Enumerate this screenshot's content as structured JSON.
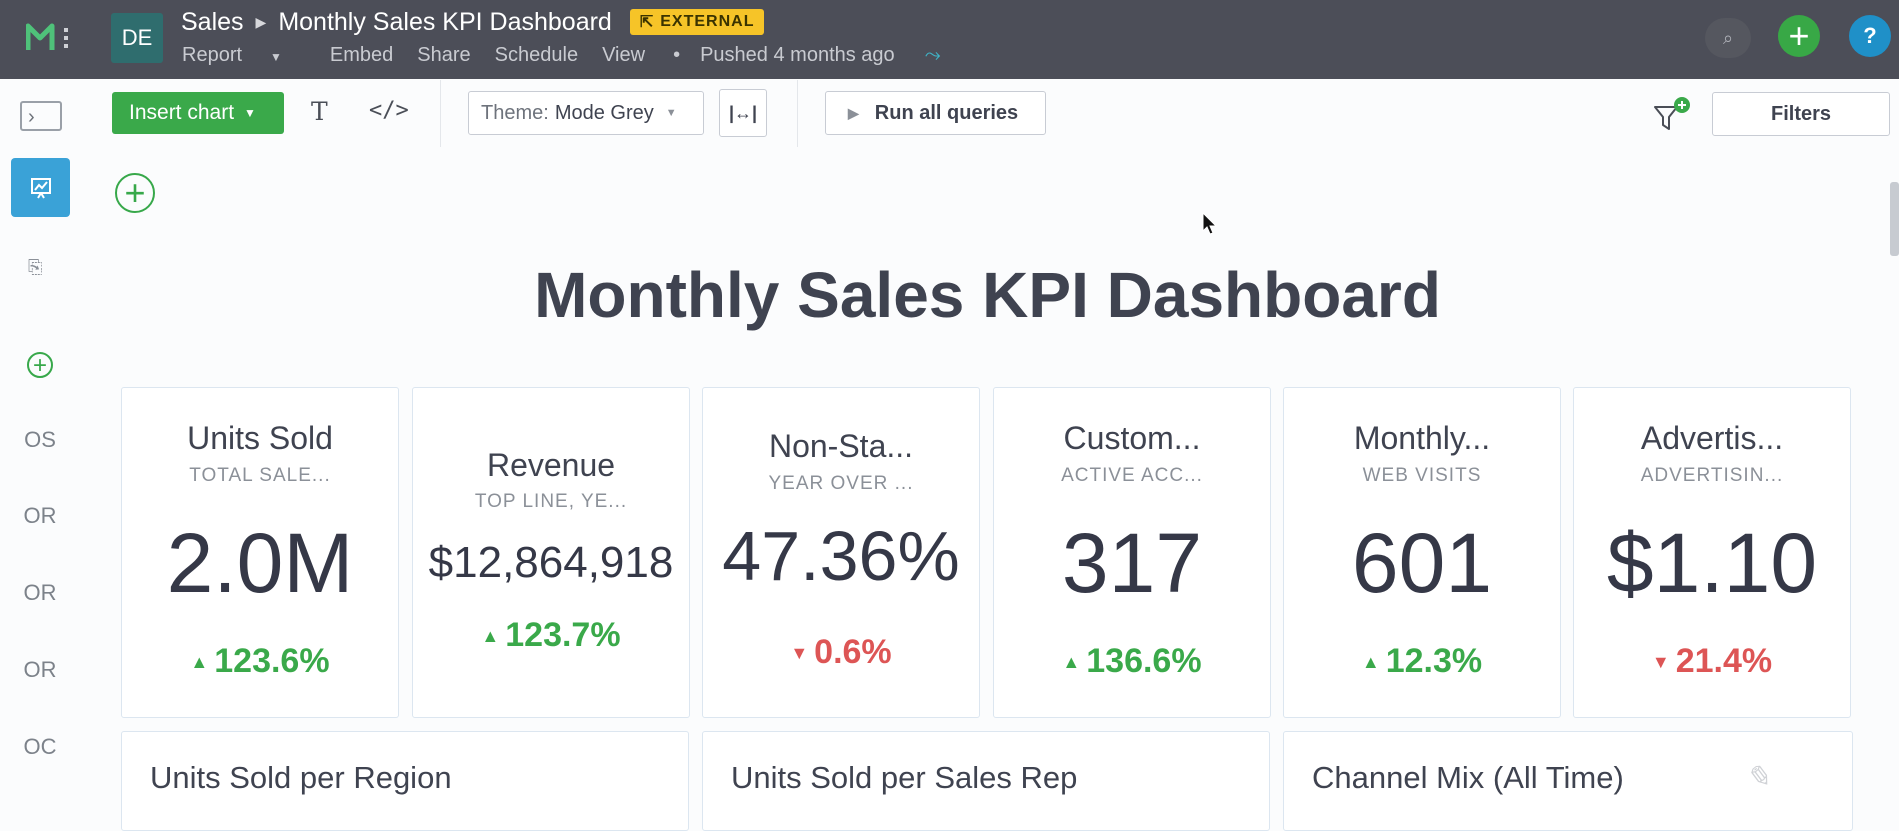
{
  "header": {
    "avatar_initials": "DE",
    "space": "Sales",
    "report_title": "Monthly Sales KPI Dashboard",
    "badge": "EXTERNAL",
    "menu": {
      "report": "Report",
      "embed": "Embed",
      "share": "Share",
      "schedule": "Schedule",
      "view": "View",
      "separator": "•",
      "pushed": "Pushed 4 months ago"
    },
    "help_label": "?",
    "add_label": "+"
  },
  "rail": {
    "items": [
      "OS",
      "OR",
      "OR",
      "OR",
      "OC"
    ]
  },
  "toolbar": {
    "insert_chart": "Insert chart",
    "text_tool": "T",
    "code_tool": "</>",
    "theme_label": "Theme:",
    "theme_value": "Mode Grey",
    "run_all": "Run all queries",
    "filters": "Filters"
  },
  "report": {
    "title": "Monthly Sales KPI Dashboard",
    "kpis": [
      {
        "title": "Units Sold",
        "subtitle": "TOTAL SALE...",
        "value": "2.0M",
        "delta": "123.6%",
        "direction": "up"
      },
      {
        "title": "Revenue",
        "subtitle": "TOP LINE, YE...",
        "value": "$12,864,918",
        "delta": "123.7%",
        "direction": "up"
      },
      {
        "title": "Non-Sta...",
        "subtitle": "YEAR OVER ...",
        "value": "47.36%",
        "delta": "0.6%",
        "direction": "down"
      },
      {
        "title": "Custom...",
        "subtitle": "ACTIVE ACC...",
        "value": "317",
        "delta": "136.6%",
        "direction": "up"
      },
      {
        "title": "Monthly...",
        "subtitle": "WEB VISITS",
        "value": "601",
        "delta": "12.3%",
        "direction": "up"
      },
      {
        "title": "Advertis...",
        "subtitle": "ADVERTISIN...",
        "value": "$1.10",
        "delta": "21.4%",
        "direction": "down"
      }
    ],
    "charts": [
      {
        "title": "Units Sold per Region"
      },
      {
        "title": "Units Sold per Sales Rep"
      },
      {
        "title": "Channel Mix (All Time)"
      }
    ]
  },
  "colors": {
    "topbar": "#4c4e58",
    "accent_green": "#3aa94a",
    "accent_blue": "#3aa2d7",
    "badge": "#f6c428",
    "up": "#3aa94a",
    "down": "#dd5555"
  }
}
